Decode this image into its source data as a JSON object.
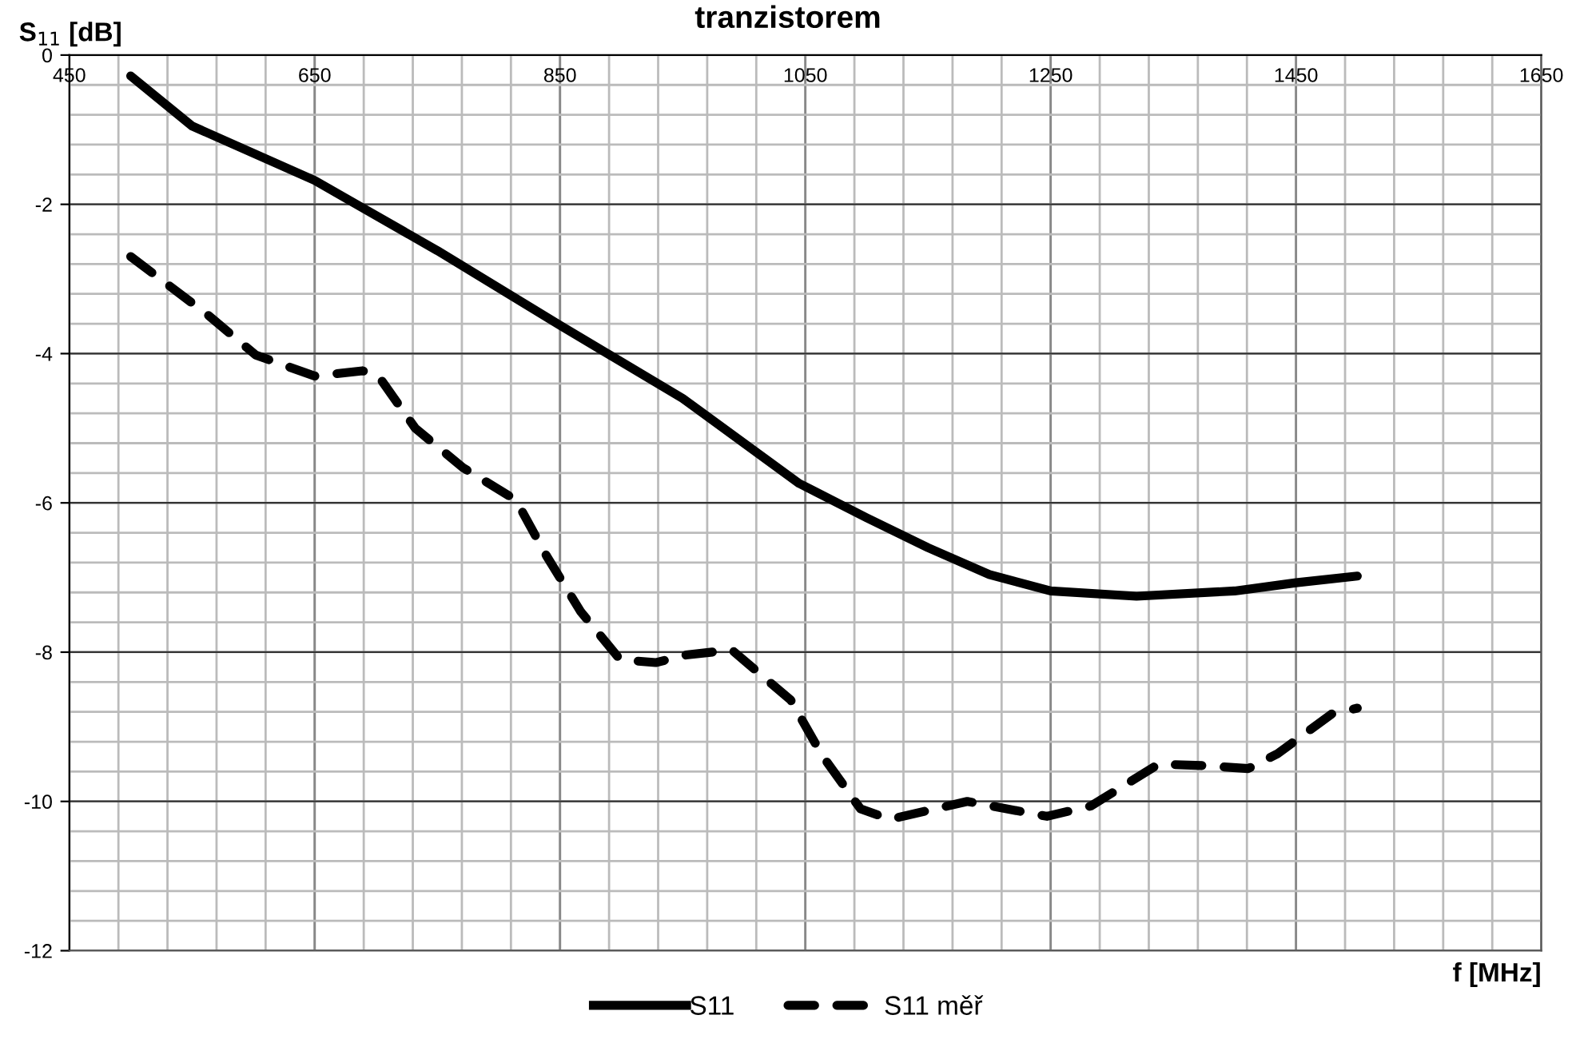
{
  "chart_data": {
    "type": "line",
    "title": "tranzistorem",
    "xlabel": "f [MHz]",
    "ylabel": "S$_{11}$ [dB]",
    "xlim": [
      450,
      1650
    ],
    "xticks": [
      450,
      650,
      850,
      1050,
      1250,
      1450,
      1650
    ],
    "ylim": [
      -12,
      0
    ],
    "yticks": [
      0,
      -2,
      -4,
      -6,
      -8,
      -10,
      -12
    ],
    "grid": true,
    "legend": "bottom",
    "marker": "none",
    "series": [
      {
        "name": "S11",
        "color": "#000000",
        "line_style": "solid",
        "x": [
          500,
          550,
          650,
          750,
          850,
          950,
          1045,
          1100,
          1150,
          1200,
          1250,
          1320,
          1400,
          1450,
          1500
        ],
        "values": [
          -0.28,
          -0.95,
          -1.68,
          -2.62,
          -3.62,
          -4.6,
          -5.74,
          -6.2,
          -6.6,
          -6.96,
          -7.18,
          -7.25,
          -7.18,
          -7.07,
          -6.98
        ]
      },
      {
        "name": "S11 měř",
        "color": "#000000",
        "line_style": "dashed",
        "x": [
          500,
          562,
          602,
          650,
          689,
          702,
          732,
          771,
          814,
          839,
          867,
          899,
          928,
          952,
          990,
          1038,
          1064,
          1095,
          1119,
          1182,
          1247,
          1283,
          1338,
          1374,
          1411,
          1435,
          1479,
          1500
        ],
        "values": [
          -2.7,
          -3.47,
          -4.02,
          -4.3,
          -4.23,
          -4.3,
          -5.0,
          -5.53,
          -5.96,
          -6.71,
          -7.46,
          -8.1,
          -8.14,
          -8.04,
          -7.97,
          -8.64,
          -9.39,
          -10.1,
          -10.24,
          -10.0,
          -10.2,
          -10.06,
          -9.5,
          -9.52,
          -9.56,
          -9.36,
          -8.83,
          -8.75
        ]
      }
    ]
  }
}
